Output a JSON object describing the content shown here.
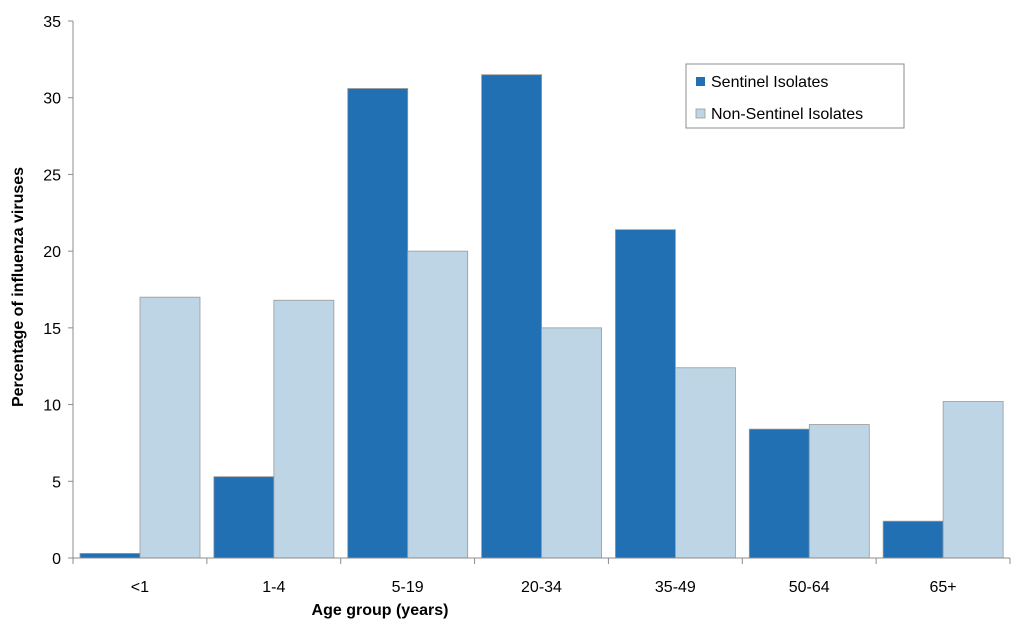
{
  "chart_data": {
    "type": "bar",
    "title": "",
    "xlabel": "Age group (years)",
    "ylabel": "Percentage of influenza viruses",
    "categories": [
      "<1",
      "1-4",
      "5-19",
      "20-34",
      "35-49",
      "50-64",
      "65+"
    ],
    "series": [
      {
        "name": "Sentinel Isolates",
        "color": "#2170b4",
        "values": [
          0.3,
          5.3,
          30.6,
          31.5,
          21.4,
          8.4,
          2.4
        ]
      },
      {
        "name": "Non-Sentinel Isolates",
        "color": "#bdd5e5",
        "values": [
          17.0,
          16.8,
          20.0,
          15.0,
          12.4,
          8.7,
          10.2
        ]
      }
    ],
    "ylim": [
      0,
      35
    ],
    "yticks": [
      "0",
      "5",
      "10",
      "15",
      "20",
      "25",
      "30",
      "35"
    ],
    "grid": false,
    "legend_position": "top-right"
  }
}
